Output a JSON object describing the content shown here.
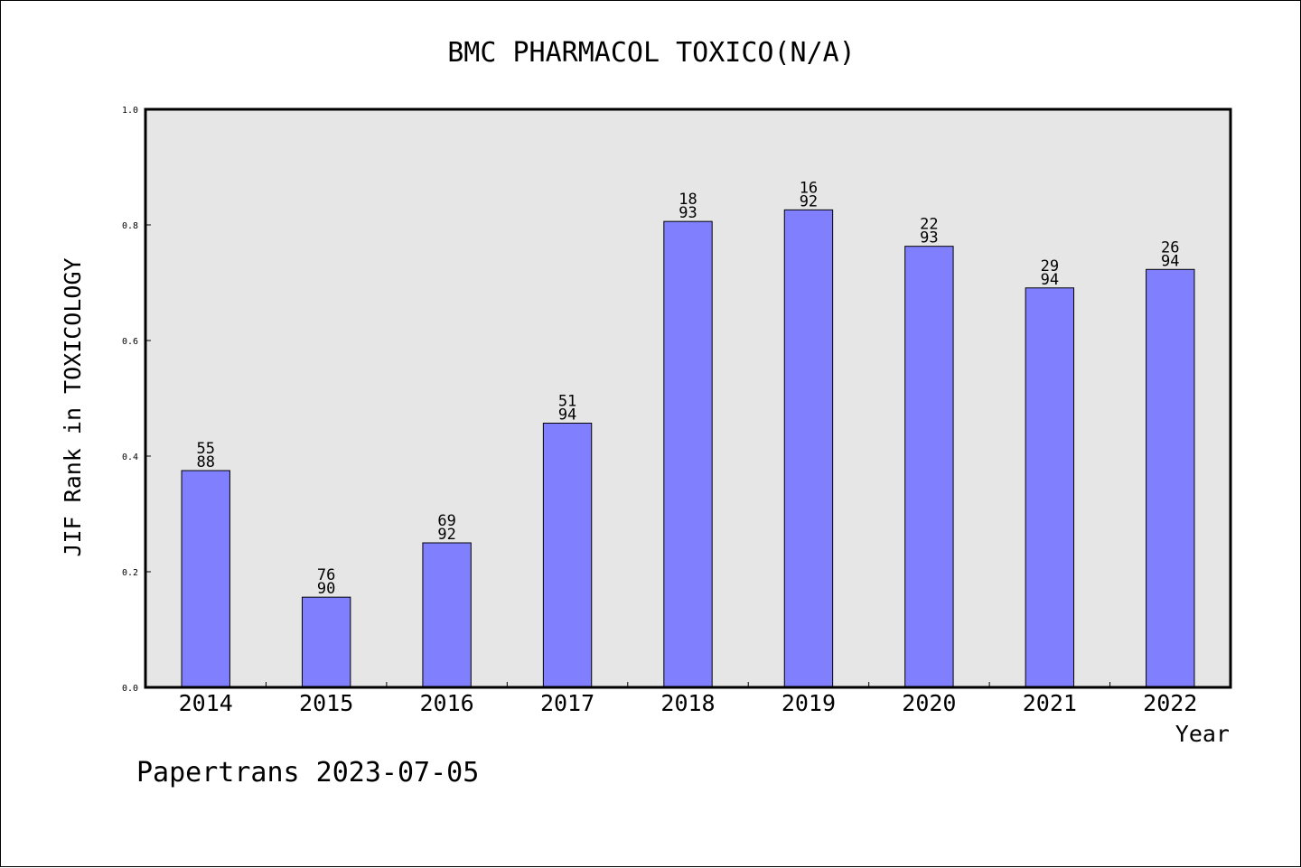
{
  "chart_data": {
    "type": "bar",
    "title": "BMC PHARMACOL TOXICO(N/A)",
    "xlabel": "Year",
    "ylabel": "JIF Rank in TOXICOLOGY",
    "ylim": [
      0,
      1.0
    ],
    "yticks": [
      "0.0",
      "0.2",
      "0.4",
      "0.6",
      "0.8",
      "1.0"
    ],
    "categories": [
      "2014",
      "2015",
      "2016",
      "2017",
      "2018",
      "2019",
      "2020",
      "2021",
      "2022"
    ],
    "values": [
      0.375,
      0.156,
      0.25,
      0.457,
      0.806,
      0.826,
      0.763,
      0.691,
      0.723
    ],
    "rank_labels": [
      {
        "rank": "55",
        "total": "88"
      },
      {
        "rank": "76",
        "total": "90"
      },
      {
        "rank": "69",
        "total": "92"
      },
      {
        "rank": "51",
        "total": "94"
      },
      {
        "rank": "18",
        "total": "93"
      },
      {
        "rank": "16",
        "total": "92"
      },
      {
        "rank": "22",
        "total": "93"
      },
      {
        "rank": "29",
        "total": "94"
      },
      {
        "rank": "26",
        "total": "94"
      }
    ],
    "bar_color": "#8080ff",
    "plot_background": "#e6e6e6",
    "grid": false
  },
  "footer": {
    "text": "Papertrans 2023-07-05"
  }
}
